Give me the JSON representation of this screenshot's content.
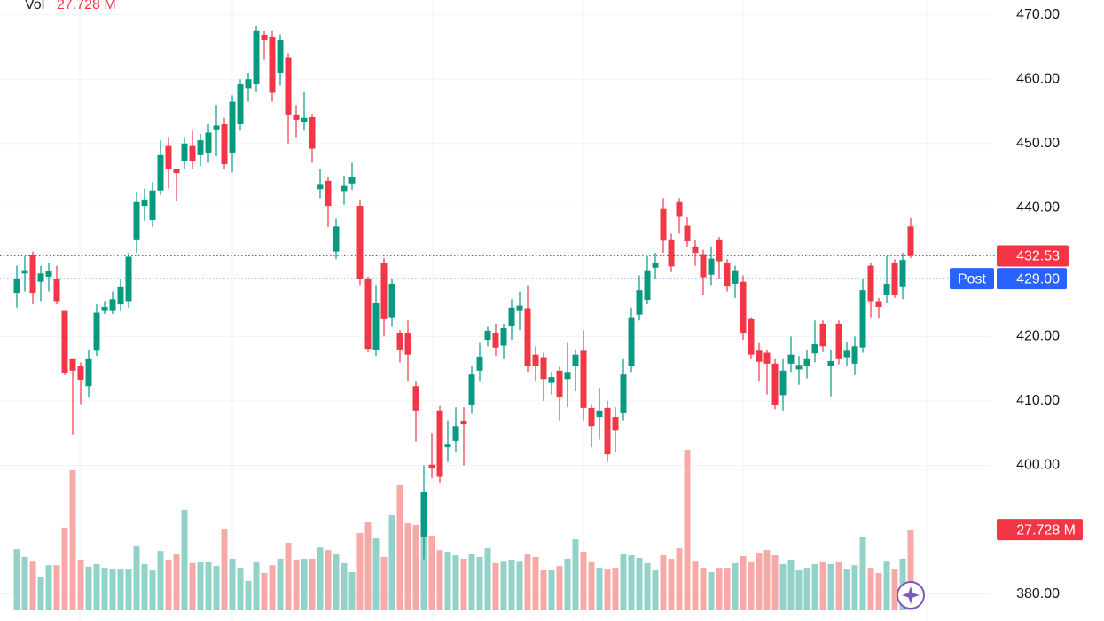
{
  "chart_data": {
    "type": "candlestick",
    "volume_title": "Vol",
    "up_color": "#089981",
    "down_color": "#f23645",
    "volume_up_color": "#92d2c8",
    "volume_down_color": "#f7a9a7",
    "ylim": [
      375.8,
      472.3
    ],
    "yticks": [
      {
        "value": 380,
        "label": "380.00"
      },
      {
        "value": 400,
        "label": "400.00"
      },
      {
        "value": 410,
        "label": "410.00"
      },
      {
        "value": 420,
        "label": "420.00"
      },
      {
        "value": 440,
        "label": "440.00"
      },
      {
        "value": 450,
        "label": "450.00"
      },
      {
        "value": 460,
        "label": "460.00"
      },
      {
        "value": 470,
        "label": "470.00"
      }
    ],
    "grid": true,
    "volume_ylim": [
      0,
      55.5
    ],
    "last_price": 432.53,
    "post_label": "Post",
    "post_price": {
      "value": 429,
      "label": "429.00"
    },
    "post_color": "#2962ff",
    "volume_badge": {
      "value": 27.728,
      "label": "27.728 M"
    },
    "open": [
      426.8,
      429.8,
      432.6,
      428.5,
      429.3,
      428.9,
      424.1,
      416.5,
      415.5,
      412.3,
      417.8,
      424.1,
      424.1,
      425,
      425.5,
      435.1,
      440.3,
      438.1,
      442.7,
      449.6,
      446.1,
      447.2,
      449.6,
      448.2,
      448.6,
      452.2,
      453,
      448.6,
      453,
      458.6,
      459.2,
      466.8,
      466.5,
      461,
      463.4,
      454.4,
      453.3,
      454.1,
      442.9,
      444.2,
      433.2,
      442.6,
      443.8,
      440.3,
      428.9,
      418,
      431.5,
      423,
      420.6,
      420.6,
      412.3,
      388.9,
      400.1,
      408.5,
      402.8,
      403.8,
      406.9,
      409.4,
      414.7,
      419.5,
      420.6,
      418.6,
      421.6,
      424.1,
      424.4,
      417.2,
      416.8,
      412.8,
      414.7,
      413.4,
      415.5,
      417.8,
      408.9,
      407.5,
      408.9,
      407.5,
      408.2,
      415.5,
      423.4,
      425.7,
      430.7,
      439.8,
      435.1,
      440.9,
      437.2,
      434,
      432.8,
      429.6,
      435.1,
      431.5,
      428.2,
      428.5,
      422.7,
      417.8,
      417.5,
      415.8,
      410.9,
      415.8,
      414.9,
      415.5,
      417.4,
      422,
      415.5,
      422,
      416.8,
      415.8,
      418.3,
      431,
      425.5,
      426.5,
      431.5,
      427.8,
      437.1
    ],
    "high": [
      431,
      432.5,
      433.2,
      431,
      431.5,
      431,
      424.1,
      416.5,
      416,
      418,
      425,
      425.5,
      427,
      429,
      433,
      442.5,
      443,
      444,
      450.5,
      451,
      446,
      451,
      452,
      451.5,
      453,
      456,
      454,
      457.5,
      460,
      461,
      468.3,
      467.5,
      467.5,
      467,
      464,
      456,
      458,
      454.5,
      446,
      444.8,
      438.3,
      445,
      447,
      441.3,
      429.3,
      428,
      432.2,
      429,
      421,
      422.5,
      413,
      400,
      405,
      409.2,
      407,
      409,
      409,
      415.5,
      419,
      421.5,
      422,
      422,
      425.8,
      427,
      428,
      418.5,
      417.5,
      414.5,
      415.3,
      419,
      418,
      421,
      409.5,
      412,
      410,
      409,
      416.5,
      424.5,
      429.5,
      432.5,
      433,
      441.5,
      436,
      441.5,
      438.5,
      435,
      433.5,
      434,
      435.5,
      432,
      431,
      429.5,
      423,
      419,
      418,
      416.5,
      416.5,
      420,
      417,
      418,
      422.5,
      422.5,
      418,
      422.5,
      419.2,
      420,
      429,
      431.5,
      426,
      432.5,
      432,
      433,
      438.4
    ],
    "low": [
      424.5,
      427,
      425,
      425.5,
      427,
      425,
      414,
      404.8,
      409.5,
      410.5,
      417,
      423.5,
      423.5,
      424,
      424.5,
      433,
      438,
      437,
      442,
      443,
      441,
      446,
      446,
      446.5,
      447,
      448,
      446,
      445.5,
      452,
      456.5,
      458,
      463,
      456.5,
      459,
      450,
      451,
      452,
      447,
      441.5,
      437,
      432,
      440.5,
      442.8,
      428,
      417.6,
      417,
      420,
      421.5,
      416,
      413,
      403.7,
      385.4,
      398,
      397.2,
      400.5,
      402,
      400,
      408,
      413,
      418.5,
      417,
      416.5,
      419.5,
      421,
      414.5,
      413,
      410,
      411,
      407,
      409,
      411.5,
      407,
      402.8,
      404,
      400.5,
      402,
      407,
      414.5,
      422.5,
      425,
      429,
      433,
      430,
      436,
      434,
      431,
      426.5,
      428,
      429,
      427,
      426,
      419.5,
      416.5,
      413,
      411,
      408.7,
      408.5,
      414.5,
      412.5,
      413.5,
      416,
      417.6,
      410.7,
      415.7,
      415.5,
      414,
      417.5,
      423,
      422.8,
      425.2,
      426,
      425.8,
      432.2
    ],
    "close": [
      428.9,
      430.3,
      426.8,
      429.8,
      430.2,
      425.5,
      414.4,
      414.7,
      413.3,
      416.5,
      423.7,
      424.6,
      425.8,
      427.8,
      432.4,
      440.9,
      441.3,
      442.7,
      448.2,
      446.1,
      445.4,
      450,
      447.2,
      450.5,
      451.7,
      452.8,
      446.8,
      456.5,
      459.2,
      460,
      467.5,
      466.1,
      457.9,
      466.1,
      454.4,
      453.7,
      454,
      449.2,
      443.7,
      440.3,
      437.1,
      443.4,
      444.8,
      428.9,
      418.1,
      425.2,
      422.7,
      428.2,
      418,
      417.2,
      408.5,
      395.8,
      399.5,
      398.2,
      403.2,
      406.1,
      406.4,
      414.1,
      416.9,
      420.9,
      418.3,
      421.3,
      424.5,
      424.8,
      415.5,
      415.5,
      413.4,
      413.7,
      410.6,
      414.5,
      417.2,
      408.9,
      406.1,
      408.5,
      401.7,
      405.4,
      414.1,
      423,
      427.2,
      430.3,
      431.5,
      434.9,
      430.9,
      438.6,
      434.8,
      433,
      429.2,
      432.1,
      431.7,
      427.9,
      430.3,
      420.6,
      417.2,
      416.1,
      415.8,
      409.4,
      414.7,
      417.2,
      415.6,
      416.5,
      418.8,
      418.5,
      416.2,
      416.5,
      417.8,
      418.5,
      427.2,
      425.5,
      424.6,
      428.2,
      426.5,
      431.9,
      432.5
    ],
    "volume": [
      21,
      18.3,
      17,
      11.6,
      15.5,
      15.5,
      28.4,
      48.2,
      17.4,
      15,
      15.9,
      14.6,
      14.3,
      14.3,
      14.3,
      22.3,
      15.9,
      13.7,
      20.4,
      17.4,
      19.2,
      34.5,
      16.2,
      16.8,
      16.5,
      15.2,
      28,
      17.7,
      14.6,
      10.1,
      16.8,
      12.8,
      15.5,
      17.7,
      23.2,
      17.4,
      17.7,
      17.7,
      21.6,
      20.7,
      19.5,
      16.2,
      13.1,
      26.5,
      30.5,
      24.7,
      18.3,
      32.9,
      43,
      29.9,
      29.3,
      40.5,
      25.6,
      20.7,
      20.1,
      18.9,
      17.7,
      19.5,
      18.3,
      21.3,
      16.2,
      17,
      17.4,
      17,
      19.2,
      18.3,
      14,
      13.7,
      15.2,
      17.7,
      24.4,
      20.1,
      16.8,
      14.6,
      14.3,
      14.6,
      19.5,
      18.9,
      18,
      16.2,
      14,
      18.9,
      17.7,
      21.3,
      55.2,
      17,
      14.6,
      13.1,
      14.6,
      14.6,
      16.2,
      18.6,
      16.8,
      19.8,
      20.7,
      18.9,
      15.9,
      17.4,
      14,
      14.6,
      15.9,
      16.8,
      15.9,
      16.5,
      14.3,
      15.5,
      25.3,
      14.6,
      12.8,
      17,
      14.3,
      17.7,
      27.728
    ]
  }
}
